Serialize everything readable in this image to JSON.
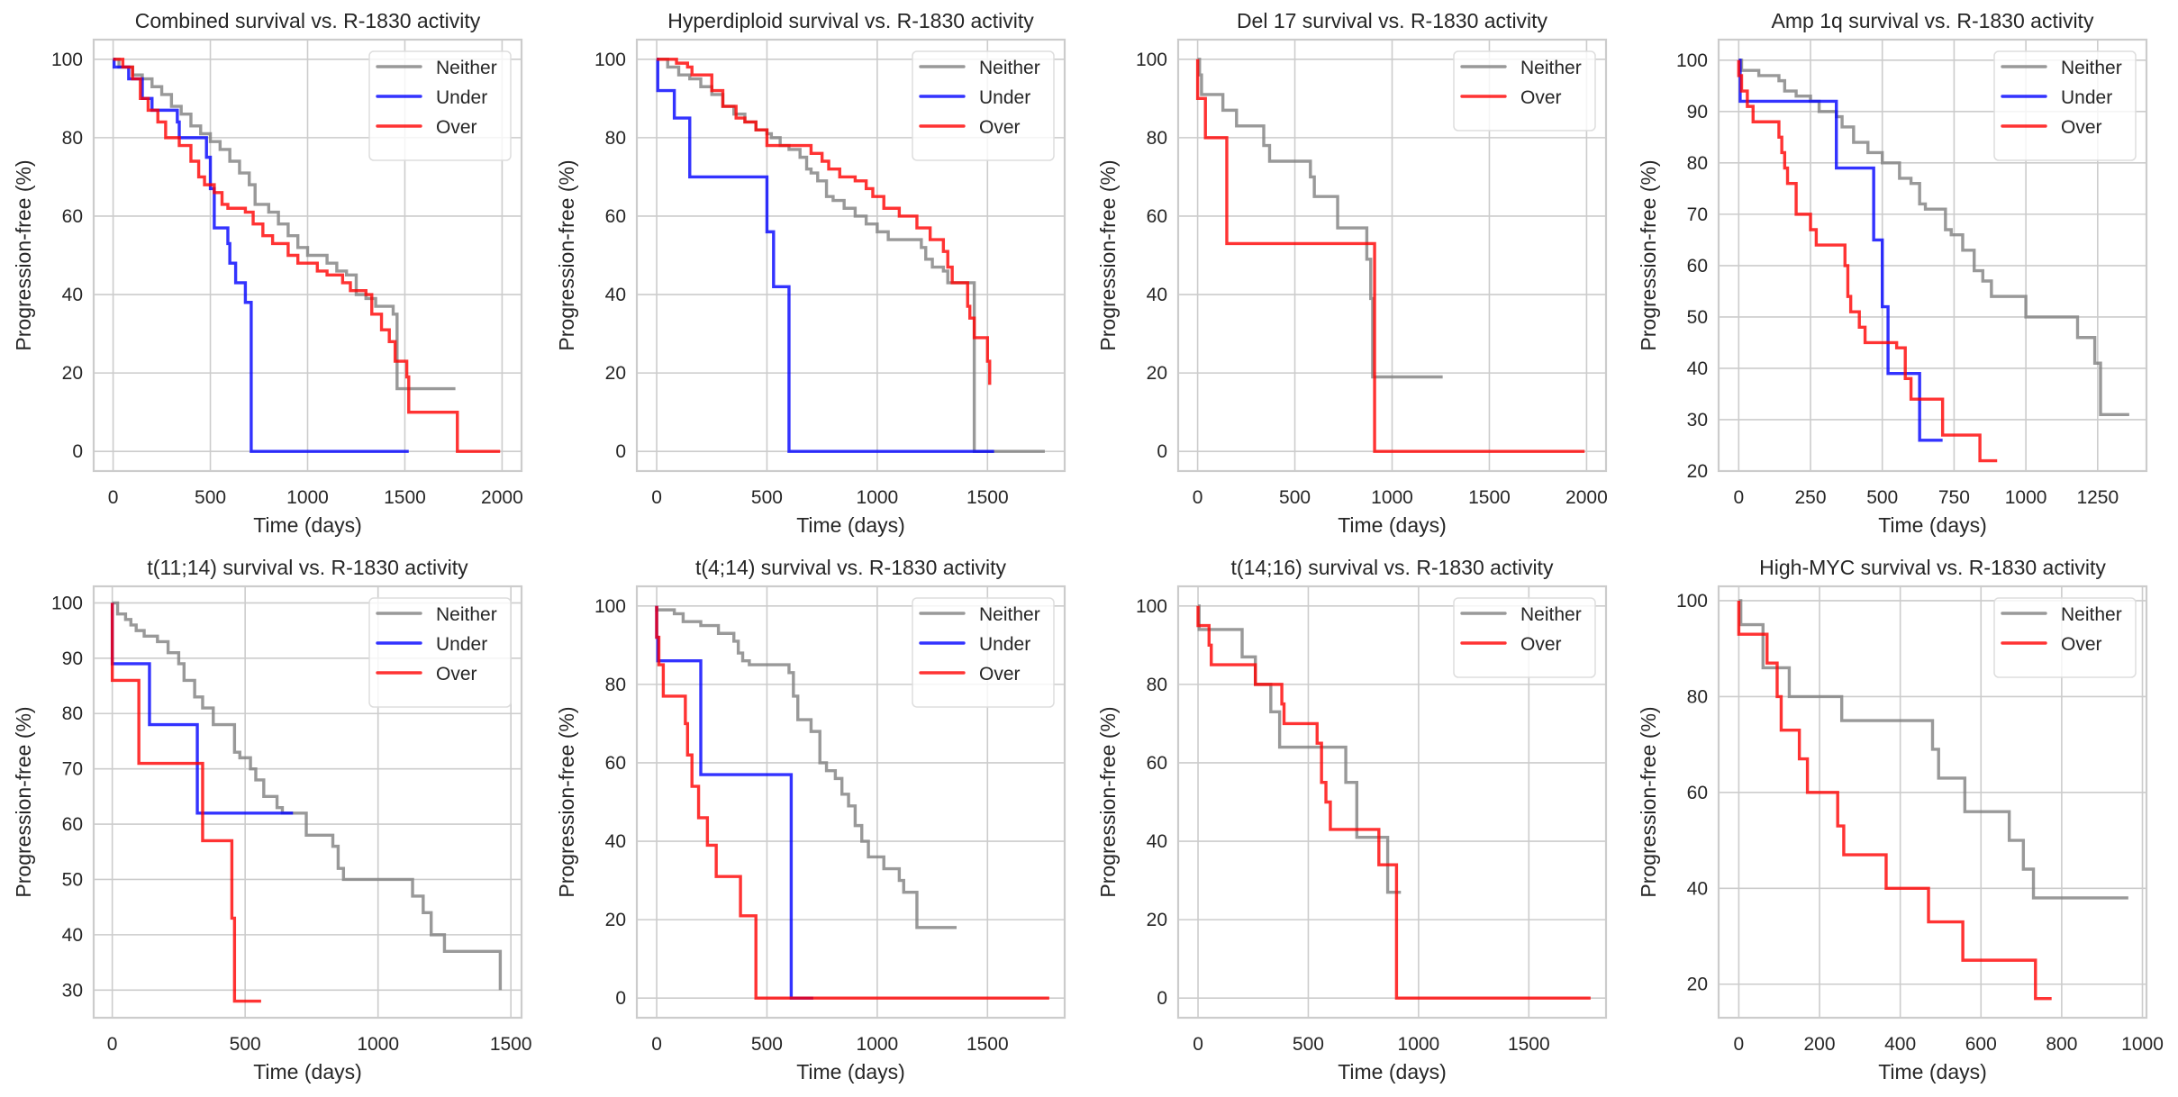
{
  "figure": {
    "background": "#ffffff",
    "grid_color": "#cccccc"
  },
  "series_colors": {
    "Neither": "#808080",
    "Under": "#0000ff",
    "Over": "#ff0000"
  },
  "series_alpha": 0.8,
  "chart_data": [
    {
      "type": "line",
      "step": "post",
      "title": "Combined survival vs. R-1830 activity",
      "xlabel": "Time (days)",
      "ylabel": "Progression-free (%)",
      "xlim": [
        -100,
        2100
      ],
      "ylim": [
        -5,
        105
      ],
      "xticks": [
        0,
        500,
        1000,
        1500,
        2000
      ],
      "yticks": [
        0,
        20,
        40,
        60,
        80,
        100
      ],
      "grid": true,
      "legend": "upper right",
      "series": [
        {
          "name": "Neither",
          "x": [
            0,
            30,
            100,
            150,
            200,
            250,
            300,
            350,
            400,
            450,
            500,
            550,
            600,
            650,
            700,
            730,
            800,
            850,
            900,
            950,
            1000,
            1100,
            1150,
            1200,
            1250,
            1300,
            1350,
            1440,
            1460,
            1760
          ],
          "y": [
            100,
            98,
            96,
            95,
            93,
            91,
            88,
            86,
            83,
            81,
            79,
            77,
            74,
            71,
            68,
            63,
            61,
            58,
            55,
            52,
            50,
            48,
            46,
            45,
            40,
            39,
            37,
            35,
            16,
            16
          ]
        },
        {
          "name": "Under",
          "x": [
            0,
            5,
            80,
            150,
            200,
            330,
            340,
            480,
            500,
            520,
            590,
            600,
            630,
            680,
            710,
            1520
          ],
          "y": [
            100,
            98,
            95,
            90,
            87,
            84,
            80,
            75,
            67,
            57,
            53,
            48,
            43,
            38,
            0,
            0
          ]
        },
        {
          "name": "Over",
          "x": [
            0,
            50,
            100,
            140,
            180,
            230,
            270,
            340,
            400,
            440,
            470,
            520,
            560,
            590,
            680,
            720,
            770,
            820,
            900,
            950,
            1050,
            1100,
            1180,
            1220,
            1300,
            1330,
            1380,
            1420,
            1450,
            1510,
            1520,
            1770,
            1990
          ],
          "y": [
            100,
            98,
            95,
            90,
            87,
            84,
            80,
            78,
            74,
            70,
            68,
            66,
            63,
            62,
            61,
            58,
            55,
            53,
            50,
            48,
            46,
            45,
            43,
            41,
            40,
            35,
            31,
            28,
            23,
            19,
            10,
            0,
            0
          ]
        }
      ]
    },
    {
      "type": "line",
      "step": "post",
      "title": "Hyperdiploid survival vs. R-1830 activity",
      "xlabel": "Time (days)",
      "ylabel": "Progression-free (%)",
      "xlim": [
        -90,
        1850
      ],
      "ylim": [
        -5,
        105
      ],
      "xticks": [
        0,
        500,
        1000,
        1500
      ],
      "yticks": [
        0,
        20,
        40,
        60,
        80,
        100
      ],
      "grid": true,
      "legend": "upper right",
      "series": [
        {
          "name": "Neither",
          "x": [
            0,
            50,
            100,
            150,
            200,
            250,
            300,
            350,
            400,
            450,
            500,
            520,
            560,
            600,
            650,
            680,
            700,
            730,
            770,
            800,
            850,
            900,
            950,
            1000,
            1050,
            1100,
            1200,
            1220,
            1250,
            1300,
            1320,
            1430,
            1440,
            1760
          ],
          "y": [
            100,
            98,
            96,
            95,
            93,
            91,
            88,
            86,
            84,
            82,
            81,
            80,
            78,
            77,
            75,
            72,
            71,
            69,
            65,
            64,
            62,
            60,
            58,
            56,
            54,
            54,
            52,
            49,
            47,
            46,
            43,
            43,
            0,
            0
          ]
        },
        {
          "name": "Under",
          "x": [
            0,
            5,
            80,
            150,
            500,
            510,
            530,
            600,
            1530
          ],
          "y": [
            100,
            92,
            85,
            70,
            56,
            56,
            42,
            0,
            0
          ]
        },
        {
          "name": "Over",
          "x": [
            0,
            90,
            140,
            160,
            250,
            300,
            360,
            400,
            450,
            500,
            600,
            700,
            750,
            780,
            830,
            900,
            950,
            980,
            1030,
            1100,
            1180,
            1240,
            1300,
            1320,
            1340,
            1410,
            1420,
            1440,
            1500,
            1510
          ],
          "y": [
            100,
            99,
            98,
            96,
            92,
            88,
            85,
            84,
            82,
            78,
            78,
            76,
            74,
            72,
            70,
            69,
            67,
            65,
            62,
            60,
            57,
            54,
            51,
            47,
            43,
            37,
            34,
            29,
            23,
            17
          ]
        }
      ]
    },
    {
      "type": "line",
      "step": "post",
      "title": "Del 17 survival vs. R-1830 activity",
      "xlabel": "Time (days)",
      "ylabel": "Progression-free (%)",
      "xlim": [
        -100,
        2100
      ],
      "ylim": [
        -5,
        105
      ],
      "xticks": [
        0,
        500,
        1000,
        1500,
        2000
      ],
      "yticks": [
        0,
        20,
        40,
        60,
        80,
        100
      ],
      "grid": true,
      "legend": "upper right",
      "series": [
        {
          "name": "Neither",
          "x": [
            0,
            10,
            20,
            130,
            200,
            340,
            370,
            580,
            600,
            720,
            870,
            890,
            900,
            1260
          ],
          "y": [
            100,
            96,
            91,
            87,
            83,
            78,
            74,
            70,
            65,
            57,
            49,
            39,
            19,
            19
          ]
        },
        {
          "name": "Over",
          "x": [
            0,
            40,
            150,
            910,
            1990
          ],
          "y": [
            90,
            80,
            53,
            0,
            0
          ]
        }
      ]
    },
    {
      "type": "line",
      "step": "post",
      "title": "Amp 1q survival vs. R-1830 activity",
      "xlabel": "Time (days)",
      "ylabel": "Progression-free (%)",
      "xlim": [
        -70,
        1420
      ],
      "ylim": [
        20,
        104
      ],
      "xticks": [
        0,
        250,
        500,
        750,
        1000,
        1250
      ],
      "yticks": [
        20,
        30,
        40,
        50,
        60,
        70,
        80,
        90,
        100
      ],
      "grid": true,
      "legend": "upper right",
      "series": [
        {
          "name": "Neither",
          "x": [
            0,
            10,
            70,
            140,
            160,
            200,
            250,
            280,
            340,
            360,
            400,
            450,
            500,
            560,
            600,
            630,
            650,
            720,
            740,
            780,
            820,
            830,
            850,
            880,
            900,
            960,
            1000,
            1180,
            1240,
            1260,
            1360
          ],
          "y": [
            100,
            98,
            97,
            96,
            94,
            93,
            92,
            90,
            89,
            87,
            84,
            82,
            80,
            77,
            76,
            72,
            71,
            67,
            66,
            63,
            59,
            59,
            57,
            54,
            54,
            54,
            50,
            46,
            41,
            31,
            31
          ]
        },
        {
          "name": "Under",
          "x": [
            0,
            5,
            340,
            470,
            500,
            520,
            630,
            710
          ],
          "y": [
            100,
            92,
            79,
            65,
            52,
            39,
            26,
            26
          ]
        },
        {
          "name": "Over",
          "x": [
            0,
            10,
            30,
            50,
            140,
            150,
            160,
            170,
            200,
            250,
            270,
            370,
            380,
            390,
            420,
            440,
            550,
            580,
            600,
            710,
            840,
            900
          ],
          "y": [
            97,
            94,
            91,
            88,
            85,
            82,
            79,
            76,
            70,
            67,
            64,
            60,
            54,
            51,
            48,
            45,
            44,
            38,
            34,
            27,
            22,
            22
          ]
        }
      ]
    },
    {
      "type": "line",
      "step": "post",
      "title": "t(11;14) survival vs. R-1830 activity",
      "xlabel": "Time (days)",
      "ylabel": "Progression-free (%)",
      "xlim": [
        -70,
        1540
      ],
      "ylim": [
        25,
        103
      ],
      "xticks": [
        0,
        500,
        1000,
        1500
      ],
      "yticks": [
        30,
        40,
        50,
        60,
        70,
        80,
        90,
        100
      ],
      "grid": true,
      "legend": "upper right",
      "series": [
        {
          "name": "Neither",
          "x": [
            0,
            20,
            50,
            70,
            90,
            120,
            170,
            210,
            250,
            270,
            310,
            340,
            380,
            430,
            460,
            480,
            520,
            540,
            570,
            620,
            640,
            720,
            730,
            800,
            830,
            850,
            870,
            1070,
            1130,
            1170,
            1200,
            1250,
            1460
          ],
          "y": [
            100,
            98,
            97,
            96,
            95,
            94,
            93,
            91,
            89,
            86,
            83,
            81,
            78,
            78,
            73,
            72,
            70,
            68,
            65,
            63,
            62,
            62,
            58,
            58,
            56,
            52,
            50,
            50,
            47,
            44,
            40,
            37,
            30
          ]
        },
        {
          "name": "Under",
          "x": [
            0,
            140,
            320,
            680
          ],
          "y": [
            89,
            78,
            62,
            62
          ]
        },
        {
          "name": "Over",
          "x": [
            0,
            100,
            340,
            450,
            460,
            560
          ],
          "y": [
            86,
            71,
            57,
            43,
            28,
            28
          ]
        }
      ]
    },
    {
      "type": "line",
      "step": "post",
      "title": "t(4;14) survival vs. R-1830 activity",
      "xlabel": "Time (days)",
      "ylabel": "Progression-free (%)",
      "xlim": [
        -90,
        1850
      ],
      "ylim": [
        -5,
        105
      ],
      "xticks": [
        0,
        500,
        1000,
        1500
      ],
      "yticks": [
        0,
        20,
        40,
        60,
        80,
        100
      ],
      "grid": true,
      "legend": "upper right",
      "series": [
        {
          "name": "Neither",
          "x": [
            0,
            80,
            120,
            200,
            280,
            350,
            370,
            390,
            420,
            600,
            620,
            640,
            700,
            740,
            770,
            810,
            840,
            870,
            900,
            930,
            960,
            1030,
            1100,
            1120,
            1180,
            1360
          ],
          "y": [
            99,
            98,
            96,
            95,
            93,
            91,
            88,
            86,
            85,
            83,
            77,
            71,
            68,
            60,
            58,
            56,
            52,
            49,
            44,
            40,
            36,
            33,
            30,
            27,
            18,
            18
          ]
        },
        {
          "name": "Under",
          "x": [
            0,
            5,
            200,
            610,
            710
          ],
          "y": [
            92,
            86,
            57,
            0,
            0
          ]
        },
        {
          "name": "Over",
          "x": [
            0,
            10,
            30,
            130,
            140,
            160,
            190,
            230,
            270,
            380,
            450,
            1780
          ],
          "y": [
            92,
            85,
            77,
            70,
            62,
            54,
            46,
            39,
            31,
            21,
            0,
            0
          ]
        }
      ]
    },
    {
      "type": "line",
      "step": "post",
      "title": "t(14;16) survival vs. R-1830 activity",
      "xlabel": "Time (days)",
      "ylabel": "Progression-free (%)",
      "xlim": [
        -90,
        1850
      ],
      "ylim": [
        -5,
        105
      ],
      "xticks": [
        0,
        500,
        1000,
        1500
      ],
      "yticks": [
        0,
        20,
        40,
        60,
        80,
        100
      ],
      "grid": true,
      "legend": "upper right",
      "series": [
        {
          "name": "Neither",
          "x": [
            0,
            5,
            200,
            260,
            330,
            370,
            670,
            720,
            860,
            920
          ],
          "y": [
            100,
            94,
            87,
            80,
            73,
            64,
            55,
            41,
            27,
            27
          ]
        },
        {
          "name": "Over",
          "x": [
            0,
            50,
            60,
            260,
            380,
            390,
            540,
            560,
            580,
            600,
            820,
            900,
            910,
            1780
          ],
          "y": [
            95,
            90,
            85,
            80,
            75,
            70,
            65,
            55,
            50,
            43,
            34,
            0,
            0,
            0
          ]
        }
      ]
    },
    {
      "type": "line",
      "step": "post",
      "title": "High-MYC survival vs. R-1830 activity",
      "xlabel": "Time (days)",
      "ylabel": "Progression-free (%)",
      "xlim": [
        -50,
        1010
      ],
      "ylim": [
        13,
        103
      ],
      "xticks": [
        0,
        200,
        400,
        600,
        800,
        1000
      ],
      "yticks": [
        20,
        40,
        60,
        80,
        100
      ],
      "grid": true,
      "legend": "upper right",
      "series": [
        {
          "name": "Neither",
          "x": [
            0,
            5,
            60,
            125,
            255,
            480,
            495,
            560,
            670,
            705,
            730,
            965
          ],
          "y": [
            100,
            95,
            86,
            80,
            75,
            69,
            63,
            56,
            50,
            44,
            38,
            38
          ]
        },
        {
          "name": "Over",
          "x": [
            0,
            70,
            95,
            105,
            150,
            170,
            245,
            260,
            365,
            470,
            555,
            735,
            775
          ],
          "y": [
            93,
            87,
            80,
            73,
            67,
            60,
            53,
            47,
            40,
            33,
            25,
            17,
            17
          ]
        }
      ]
    }
  ]
}
